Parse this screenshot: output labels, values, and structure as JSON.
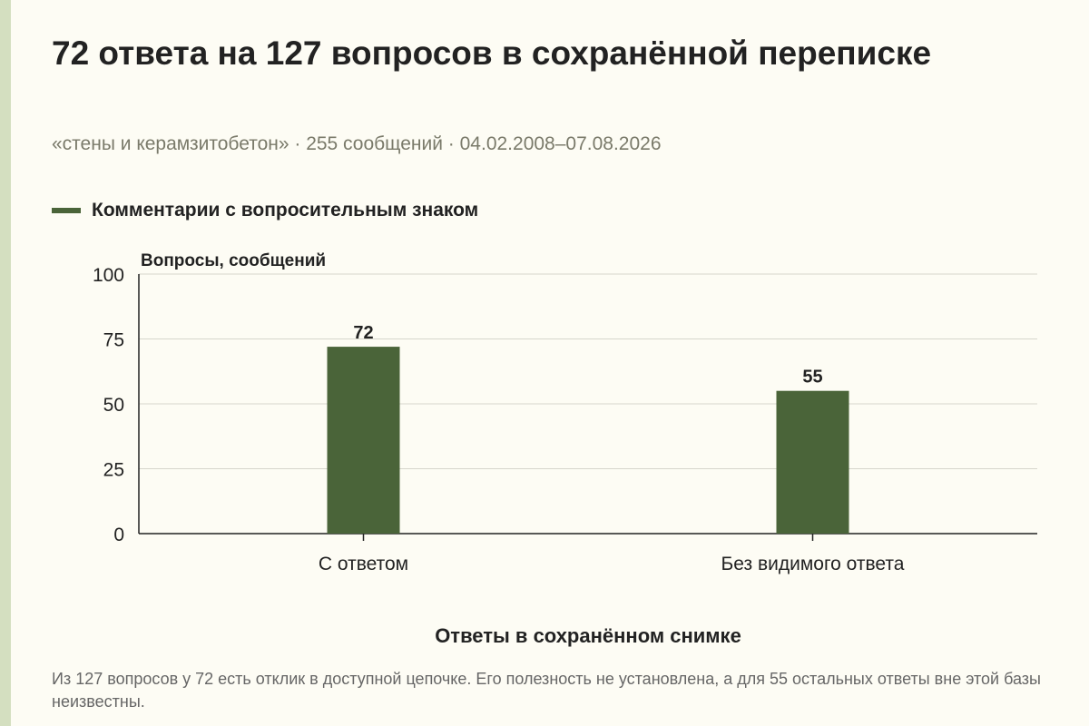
{
  "header": {
    "title": "72 ответа на 127 вопросов в сохранённой переписке",
    "subtitle": "«стены и керамзитобетон» · 255 сообщений · 04.02.2008–07.08.2026"
  },
  "footer": {
    "caption": "Из 127 вопросов у 72 есть отклик в доступной цепочке. Его полезность не установлена, а для 55 остальных ответы вне этой базы неизвестны."
  },
  "colors": {
    "bar": "#4a6439",
    "background": "#fdfcf4",
    "grid": "#d6d6cc",
    "axis": "#222222"
  },
  "chart_data": {
    "type": "bar",
    "legend_position": "top-left",
    "grid": true,
    "ylabel": "Вопросы, сообщений",
    "xlabel": "Ответы в сохранённом снимке",
    "ylim": [
      0,
      100
    ],
    "yticks": [
      0,
      25,
      50,
      75,
      100
    ],
    "categories": [
      "С ответом",
      "Без видимого ответа"
    ],
    "series": [
      {
        "name": "Комментарии с вопросительным знаком",
        "values": [
          72,
          55
        ]
      }
    ]
  }
}
